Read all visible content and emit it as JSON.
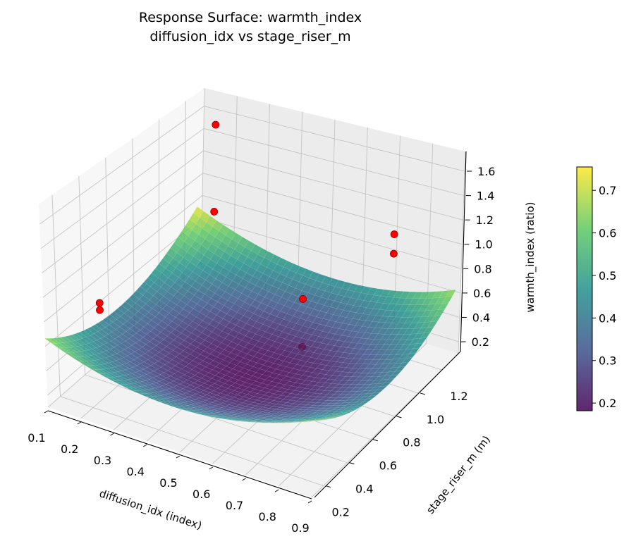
{
  "chart_data": {
    "type": "surface3d",
    "title": "Response Surface: warmth_index",
    "subtitle": "diffusion_idx vs stage_riser_m",
    "xlabel": "diffusion_idx (index)",
    "ylabel": "stage_riser_m (m)",
    "zlabel": "warmth_index (ratio)",
    "xlim": [
      0.1,
      0.9
    ],
    "ylim": [
      0.3,
      1.54
    ],
    "zlim": [
      0.102,
      1.762
    ],
    "x_ticks": [
      0.1,
      0.2,
      0.3,
      0.4,
      0.5,
      0.6,
      0.7,
      0.8,
      0.9
    ],
    "x_tick_labels": [
      "0.1",
      "0.2",
      "0.3",
      "0.4",
      "0.5",
      "0.6",
      "0.7",
      "0.8",
      "0.9"
    ],
    "y_ticks": [
      0.2,
      0.4,
      0.6,
      0.8,
      1.0,
      1.2
    ],
    "y_tick_labels": [
      "0.2",
      "0.4",
      "0.6",
      "0.8",
      "1.0",
      "1.2"
    ],
    "y_grid": [
      0.4,
      0.6,
      0.8,
      1.0,
      1.2,
      1.4
    ],
    "z_ticks": [
      0.2,
      0.4,
      0.6,
      0.8,
      1.0,
      1.2,
      1.4,
      1.6
    ],
    "z_tick_labels": [
      "0.2",
      "0.4",
      "0.6",
      "0.8",
      "1.0",
      "1.2",
      "1.4",
      "1.6"
    ],
    "grid": true,
    "surface": {
      "model": "z = c0 + a*(x-xc)^2 + b*(y-yc)^2 + c*(x-xc)*(y-yc)",
      "c0": 0.18,
      "a": 1.5,
      "b": 0.78,
      "c": -0.15,
      "xc": 0.5,
      "yc": 0.9,
      "x_range": [
        0.1,
        0.9
      ],
      "y_range": [
        0.3,
        1.5
      ],
      "colormap": "viridis",
      "alpha": 0.85
    },
    "points": [
      {
        "x": 0.16,
        "y": 1.48,
        "z": 1.53
      },
      {
        "x": 0.16,
        "y": 1.48,
        "z": 0.76
      },
      {
        "x": 0.1,
        "y": 0.73,
        "z": 0.59
      },
      {
        "x": 0.1,
        "y": 0.73,
        "z": 0.53
      },
      {
        "x": 0.6,
        "y": 1.04,
        "z": 0.78
      },
      {
        "x": 0.6,
        "y": 1.04,
        "z": 0.38
      },
      {
        "x": 0.86,
        "y": 1.07,
        "z": 1.5
      },
      {
        "x": 0.86,
        "y": 1.07,
        "z": 1.34
      }
    ],
    "point_color": "#ff0000",
    "colorbar": {
      "range": [
        0.182,
        0.755
      ],
      "ticks": [
        0.2,
        0.3,
        0.4,
        0.5,
        0.6,
        0.7
      ],
      "tick_labels": [
        "0.2",
        "0.3",
        "0.4",
        "0.5",
        "0.6",
        "0.7"
      ],
      "placement": "right"
    }
  }
}
